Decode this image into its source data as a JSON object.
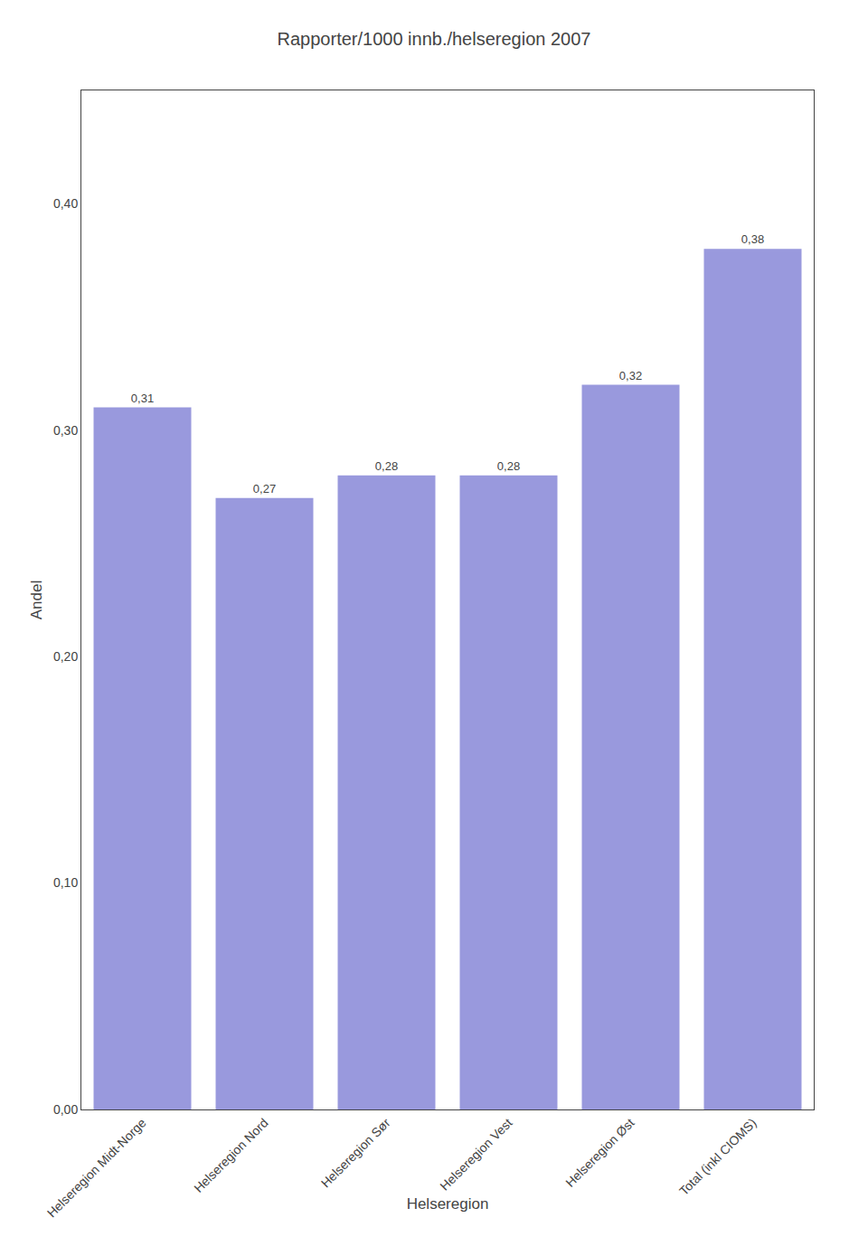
{
  "chart_data": {
    "type": "bar",
    "title": "Rapporter/1000 innb./helseregion 2007",
    "categories": [
      "Helseregion Midt-Norge",
      "Helseregion Nord",
      "Helseregion Sør",
      "Helseregion Vest",
      "Helseregion Øst",
      "Total (inkl CIOMS)"
    ],
    "values": [
      0.31,
      0.27,
      0.28,
      0.28,
      0.32,
      0.38
    ],
    "value_labels": [
      "0,31",
      "0,27",
      "0,28",
      "0,28",
      "0,32",
      "0,38"
    ],
    "data_labels": true,
    "color": "#9999dd",
    "xlabel": "Helseregion",
    "ylabel": "Andel",
    "ylim": [
      0.0,
      0.45
    ],
    "yticks": [
      {
        "value": 0.0,
        "label": "0,00"
      },
      {
        "value": 0.1,
        "label": "0,10"
      },
      {
        "value": 0.2,
        "label": "0,20"
      },
      {
        "value": 0.3,
        "label": "0,30"
      },
      {
        "value": 0.4,
        "label": "0,40"
      }
    ],
    "grid": false
  }
}
